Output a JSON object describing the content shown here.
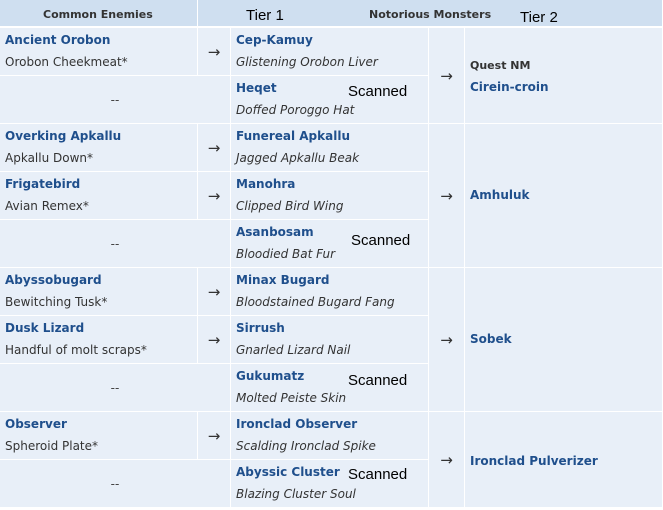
{
  "header": {
    "common_enemies": "Common Enemies",
    "tier1": "Tier 1",
    "notorious_monsters": "Notorious Monsters",
    "tier2": "Tier 2"
  },
  "arrow": "→",
  "dash": "--",
  "scanned": "Scanned",
  "groups": [
    {
      "rows": [
        {
          "enemy": "Ancient Orobon",
          "enemy_item": "Orobon Cheekmeat*",
          "nm": "Cep-Kamuy",
          "nm_item": "Glistening Orobon Liver"
        },
        {
          "enemy": "",
          "enemy_item": "",
          "nm": "Heqet",
          "nm_item": "Doffed Poroggo Hat"
        }
      ],
      "tier2_label": "Quest NM",
      "tier2_name": "Cirein-croin"
    },
    {
      "rows": [
        {
          "enemy": "Overking Apkallu",
          "enemy_item": "Apkallu Down*",
          "nm": "Funereal Apkallu",
          "nm_item": "Jagged Apkallu Beak"
        },
        {
          "enemy": "Frigatebird",
          "enemy_item": "Avian Remex*",
          "nm": "Manohra",
          "nm_item": "Clipped Bird Wing"
        },
        {
          "enemy": "",
          "enemy_item": "",
          "nm": "Asanbosam",
          "nm_item": "Bloodied Bat Fur"
        }
      ],
      "tier2_label": "",
      "tier2_name": "Amhuluk"
    },
    {
      "rows": [
        {
          "enemy": "Abyssobugard",
          "enemy_item": "Bewitching Tusk*",
          "nm": "Minax Bugard",
          "nm_item": "Bloodstained Bugard Fang"
        },
        {
          "enemy": "Dusk Lizard",
          "enemy_item": "Handful of molt scraps*",
          "nm": "Sirrush",
          "nm_item": "Gnarled Lizard Nail"
        },
        {
          "enemy": "",
          "enemy_item": "",
          "nm": "Gukumatz",
          "nm_item": "Molted Peiste Skin"
        }
      ],
      "tier2_label": "",
      "tier2_name": "Sobek"
    },
    {
      "rows": [
        {
          "enemy": "Observer",
          "enemy_item": "Spheroid Plate*",
          "nm": "Ironclad Observer",
          "nm_item": "Scalding Ironclad Spike"
        },
        {
          "enemy": "",
          "enemy_item": "",
          "nm": "Abyssic Cluster",
          "nm_item": "Blazing Cluster Soul"
        }
      ],
      "tier2_label": "",
      "tier2_name": "Ironclad Pulverizer"
    }
  ]
}
